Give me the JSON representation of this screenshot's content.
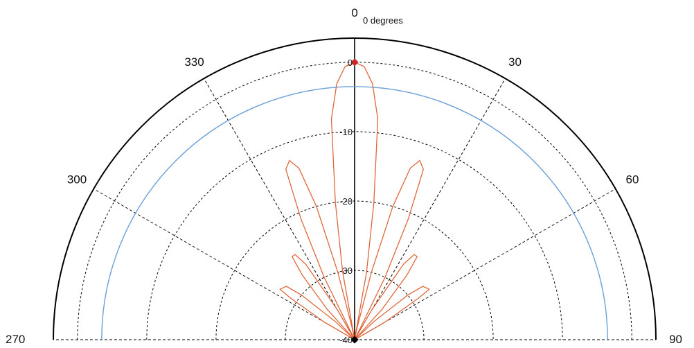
{
  "chart_data": {
    "type": "polar",
    "subtitle": "0 degrees",
    "angle_ticks": [
      {
        "angle": 0,
        "label": "0"
      },
      {
        "angle": 30,
        "label": "30"
      },
      {
        "angle": 60,
        "label": "60"
      },
      {
        "angle": 90,
        "label": "90"
      },
      {
        "angle": 270,
        "label": "270"
      },
      {
        "angle": 300,
        "label": "300"
      },
      {
        "angle": 330,
        "label": "330"
      }
    ],
    "radial_ticks": [
      {
        "value": 0,
        "label": "0"
      },
      {
        "value": -10,
        "label": "-10"
      },
      {
        "value": -20,
        "label": "-20"
      },
      {
        "value": -30,
        "label": "-30"
      },
      {
        "value": -40,
        "label": "-40"
      }
    ],
    "radial_range": [
      -40,
      0
    ],
    "angular_range": [
      -90,
      90
    ],
    "grid": true,
    "colors": {
      "pattern": "#e0663a",
      "reference": "#6a9fd8",
      "marker": "#c62828",
      "outer_frame": "#000000",
      "grid": "#000000"
    },
    "series": [
      {
        "style": "reference-circle",
        "values": [
          {
            "angle": -90,
            "r": -3.5
          },
          {
            "angle": 90,
            "r": -3.5
          }
        ]
      },
      {
        "style": "pattern",
        "points": [
          {
            "angle": -90,
            "r": -40
          },
          {
            "angle": -75,
            "r": -40
          },
          {
            "angle": -60,
            "r": -35
          },
          {
            "angle": -57,
            "r": -29
          },
          {
            "angle": -56,
            "r": -27
          },
          {
            "angle": -52,
            "r": -27.5
          },
          {
            "angle": -50,
            "r": -30
          },
          {
            "angle": -47,
            "r": -36
          },
          {
            "angle": -45,
            "r": -40
          },
          {
            "angle": -42,
            "r": -34
          },
          {
            "angle": -39,
            "r": -28
          },
          {
            "angle": -37,
            "r": -25
          },
          {
            "angle": -35,
            "r": -25
          },
          {
            "angle": -33,
            "r": -27
          },
          {
            "angle": -30,
            "r": -35
          },
          {
            "angle": -28,
            "r": -40
          },
          {
            "angle": -26,
            "r": -30
          },
          {
            "angle": -24,
            "r": -21
          },
          {
            "angle": -22,
            "r": -13.5
          },
          {
            "angle": -20,
            "r": -12.5
          },
          {
            "angle": -18,
            "r": -14
          },
          {
            "angle": -16,
            "r": -20
          },
          {
            "angle": -14,
            "r": -30
          },
          {
            "angle": -12,
            "r": -38
          },
          {
            "angle": -11,
            "r": -40
          },
          {
            "angle": -10,
            "r": -30
          },
          {
            "angle": -8,
            "r": -20
          },
          {
            "angle": -6,
            "r": -8
          },
          {
            "angle": -4,
            "r": -3
          },
          {
            "angle": -2,
            "r": -0.6
          },
          {
            "angle": 0,
            "r": 0
          },
          {
            "angle": 2,
            "r": -0.6
          },
          {
            "angle": 4,
            "r": -3
          },
          {
            "angle": 6,
            "r": -8
          },
          {
            "angle": 8,
            "r": -20
          },
          {
            "angle": 10,
            "r": -30
          },
          {
            "angle": 11,
            "r": -40
          },
          {
            "angle": 12,
            "r": -38
          },
          {
            "angle": 14,
            "r": -30
          },
          {
            "angle": 16,
            "r": -20
          },
          {
            "angle": 18,
            "r": -14
          },
          {
            "angle": 20,
            "r": -12.5
          },
          {
            "angle": 22,
            "r": -13.5
          },
          {
            "angle": 24,
            "r": -21
          },
          {
            "angle": 26,
            "r": -30
          },
          {
            "angle": 28,
            "r": -40
          },
          {
            "angle": 30,
            "r": -35
          },
          {
            "angle": 33,
            "r": -27
          },
          {
            "angle": 35,
            "r": -25
          },
          {
            "angle": 37,
            "r": -25
          },
          {
            "angle": 39,
            "r": -28
          },
          {
            "angle": 42,
            "r": -34
          },
          {
            "angle": 45,
            "r": -40
          },
          {
            "angle": 47,
            "r": -36
          },
          {
            "angle": 50,
            "r": -30
          },
          {
            "angle": 52,
            "r": -27.5
          },
          {
            "angle": 56,
            "r": -27
          },
          {
            "angle": 57,
            "r": -29
          },
          {
            "angle": 60,
            "r": -35
          },
          {
            "angle": 75,
            "r": -40
          },
          {
            "angle": 90,
            "r": -40
          }
        ]
      }
    ],
    "markers": [
      {
        "angle": 0,
        "r": 0
      },
      {
        "angle": 0,
        "r": -40
      }
    ]
  }
}
